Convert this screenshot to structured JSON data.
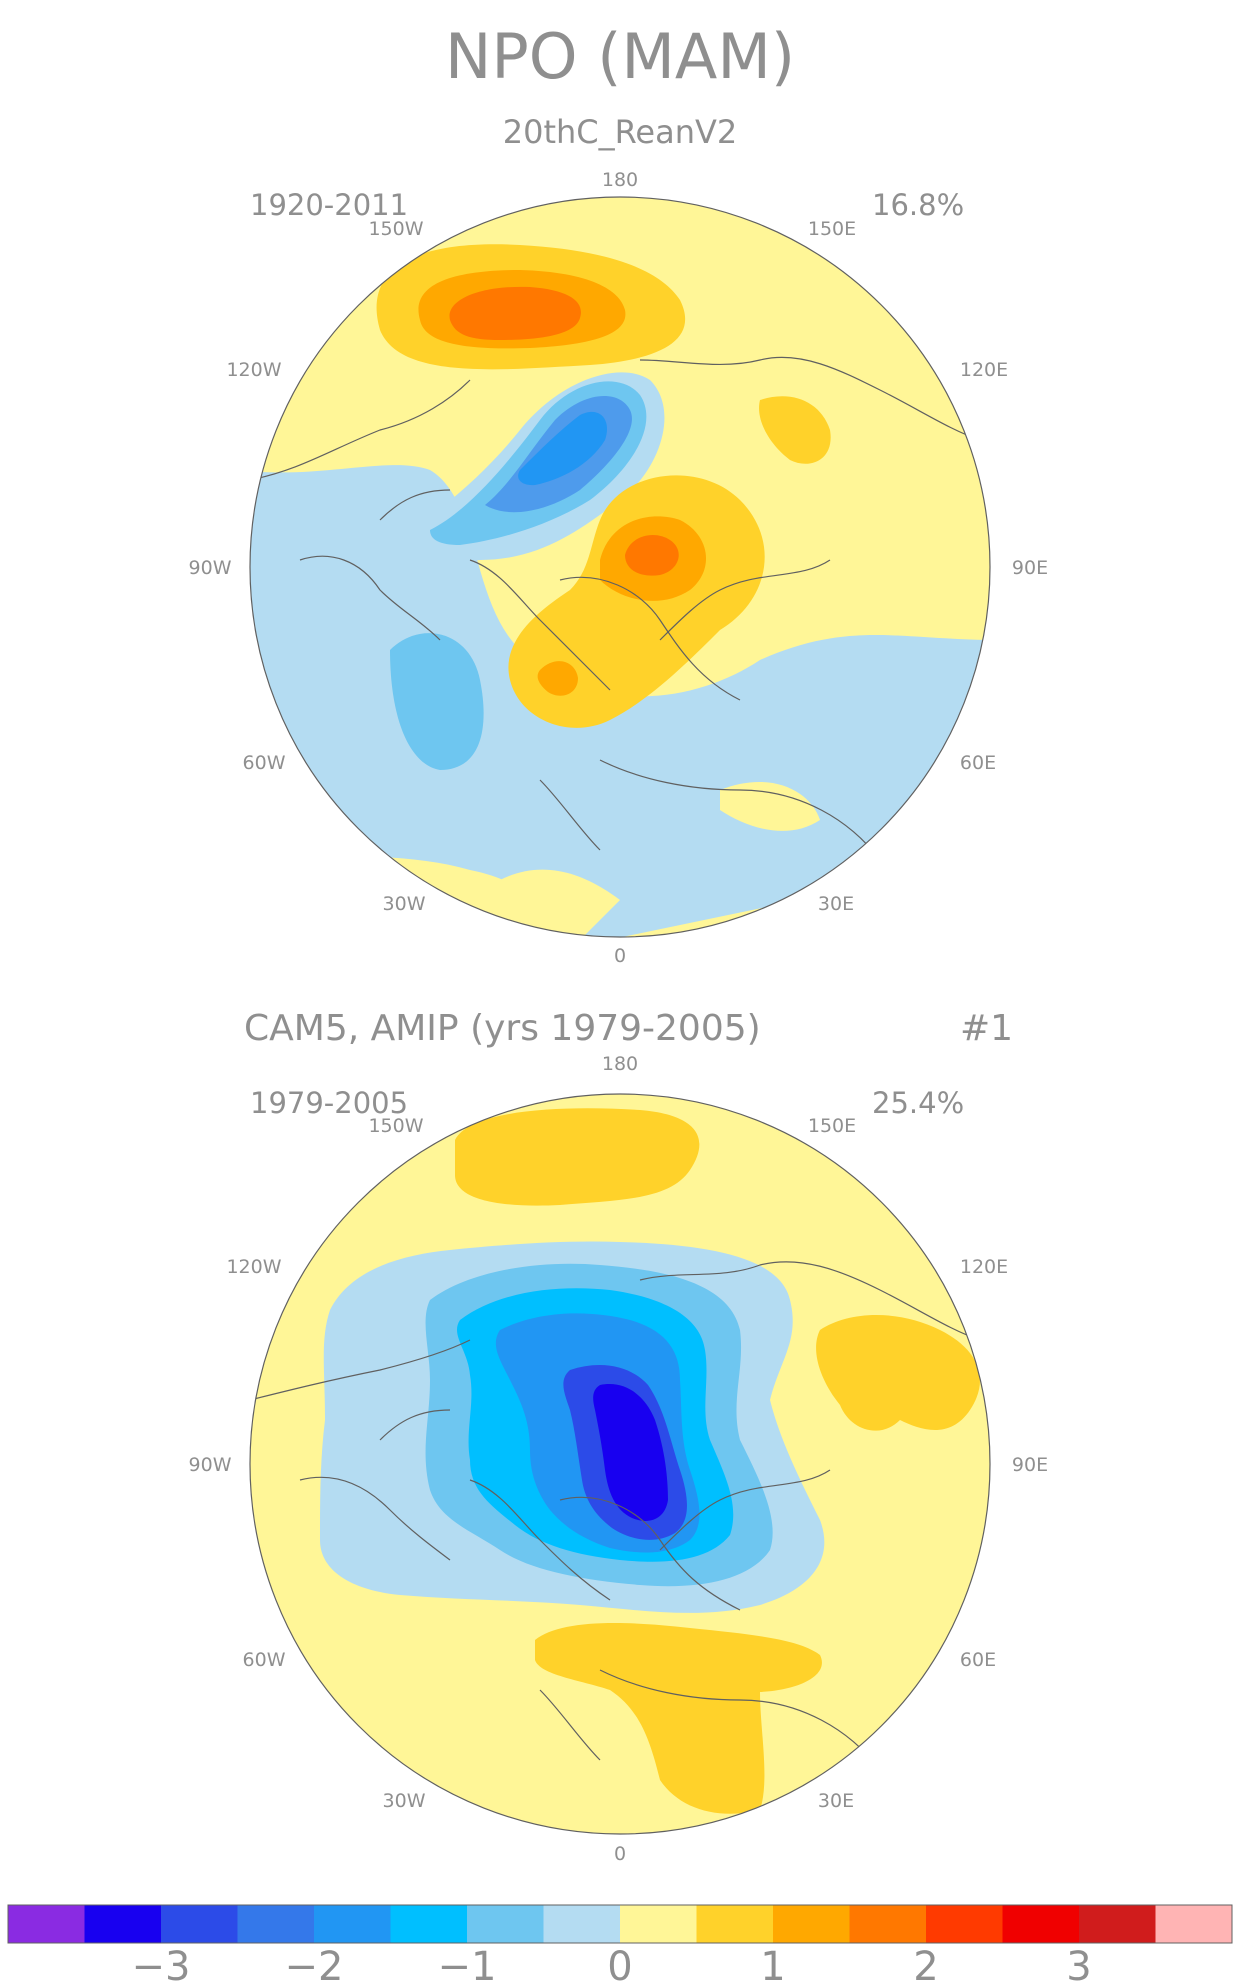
{
  "title": "NPO (MAM)",
  "panels": [
    {
      "subtitle": "20thC_ReanV2",
      "subtitle_right": "",
      "period": "1920-2011",
      "variance": "16.8%",
      "longitude_labels": [
        "180",
        "150W",
        "150E",
        "120W",
        "120E",
        "90W",
        "90E",
        "60W",
        "60E",
        "30W",
        "30E",
        "0"
      ]
    },
    {
      "subtitle": "CAM5, AMIP (yrs 1979-2005)",
      "subtitle_right": "#1",
      "period": "1979-2005",
      "variance": "25.4%",
      "longitude_labels": [
        "180",
        "150W",
        "150E",
        "120W",
        "120E",
        "90W",
        "90E",
        "60W",
        "60E",
        "30W",
        "30E",
        "0"
      ]
    }
  ],
  "colorbar": {
    "colors": [
      "#8a2be2",
      "#1800f0",
      "#2c4be8",
      "#3478ea",
      "#2196f3",
      "#00bfff",
      "#6ec6f0",
      "#b4dcf2",
      "#fff697",
      "#ffd22a",
      "#ffa800",
      "#ff7800",
      "#ff3a00",
      "#f00000",
      "#d01c1c",
      "#ffb4b4"
    ],
    "tick_labels": [
      "-3",
      "-2",
      "-1",
      "0",
      "1",
      "2",
      "3"
    ]
  },
  "colors": {
    "background": "#fff697",
    "text": "#8f8f8f",
    "coast": "#606060"
  }
}
